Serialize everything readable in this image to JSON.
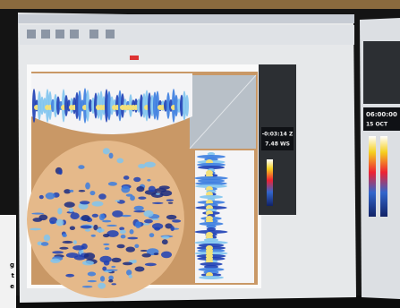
{
  "side_panel": {
    "time": "-0:03:14 Z",
    "value": "7.48 WS"
  },
  "right_window": {
    "time": "06:00:00",
    "date": "15 OCT"
  },
  "left_caption": [
    "g",
    "t",
    "e"
  ]
}
